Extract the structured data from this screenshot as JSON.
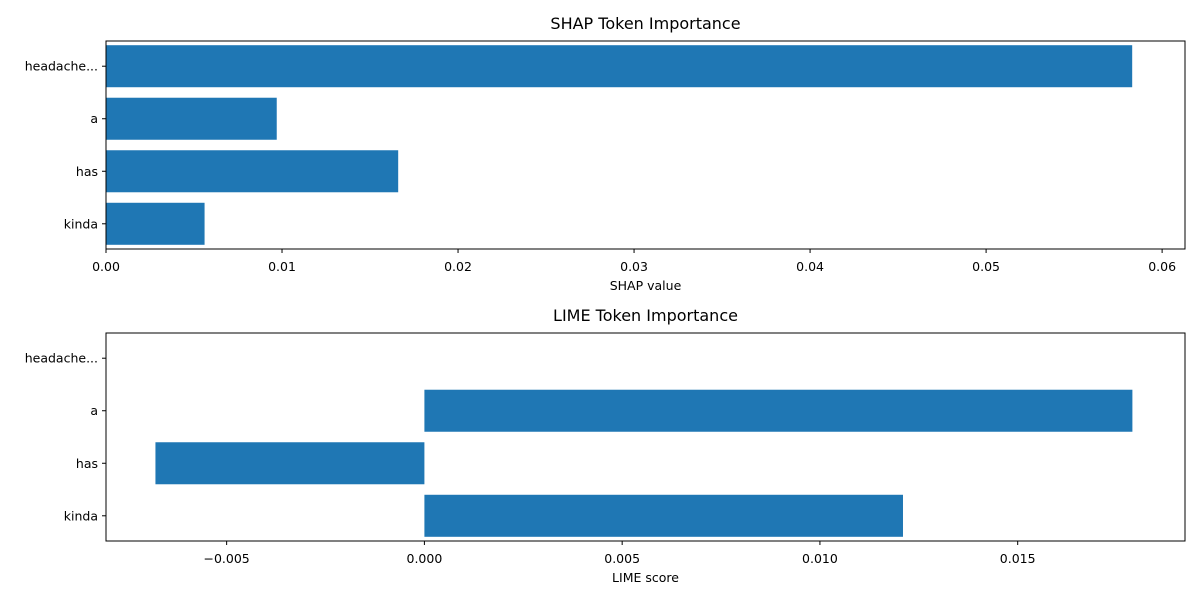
{
  "chart_data": [
    {
      "type": "bar",
      "orientation": "horizontal",
      "title": "SHAP Token Importance",
      "xlabel": "SHAP value",
      "ylabel": "",
      "categories": [
        "headache...",
        "a",
        "has",
        "kinda"
      ],
      "values": [
        0.0583,
        0.0097,
        0.0166,
        0.0056
      ],
      "xlim": [
        0.0,
        0.0613
      ],
      "xticks": [
        0.0,
        0.01,
        0.02,
        0.03,
        0.04,
        0.05,
        0.06
      ],
      "xtick_labels": [
        "0.00",
        "0.01",
        "0.02",
        "0.03",
        "0.04",
        "0.05",
        "0.06"
      ],
      "bar_color": "#1f77b4",
      "grid": false,
      "legend": false
    },
    {
      "type": "bar",
      "orientation": "horizontal",
      "title": "LIME Token Importance",
      "xlabel": "LIME score",
      "ylabel": "",
      "categories": [
        "headache...",
        "a",
        "has",
        "kinda"
      ],
      "values": [
        0.0,
        0.0179,
        -0.0068,
        0.0121
      ],
      "xlim": [
        -0.00805,
        0.01923
      ],
      "xticks": [
        -0.005,
        0.0,
        0.005,
        0.01,
        0.015
      ],
      "xtick_labels": [
        "−0.005",
        "0.000",
        "0.005",
        "0.010",
        "0.015"
      ],
      "bar_color": "#1f77b4",
      "grid": false,
      "legend": false
    }
  ]
}
